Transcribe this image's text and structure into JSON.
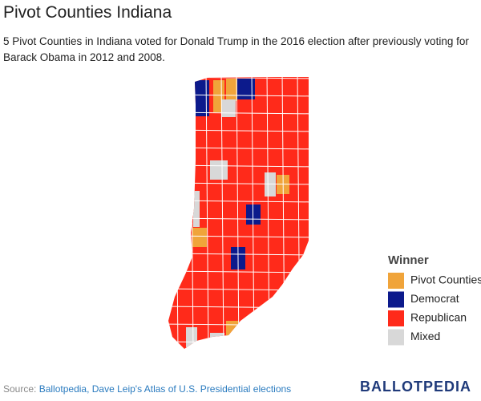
{
  "header": {
    "title": "Pivot Counties Indiana",
    "subtitle": "5 Pivot Counties in Indiana voted for Donald Trump in the 2016 election after previously voting for Barack Obama in 2012 and 2008."
  },
  "legend": {
    "title": "Winner",
    "items": [
      {
        "label": "Pivot Counties",
        "color": "#f0a43a"
      },
      {
        "label": "Democrat",
        "color": "#0c1a8c"
      },
      {
        "label": "Republican",
        "color": "#ff2a1a"
      },
      {
        "label": "Mixed",
        "color": "#d8d8d8"
      }
    ]
  },
  "source": {
    "label": "Source:",
    "text": "Ballotpedia, Dave Leip's Atlas of U.S. Presidential elections"
  },
  "logo": "BALLOTPEDIA"
}
